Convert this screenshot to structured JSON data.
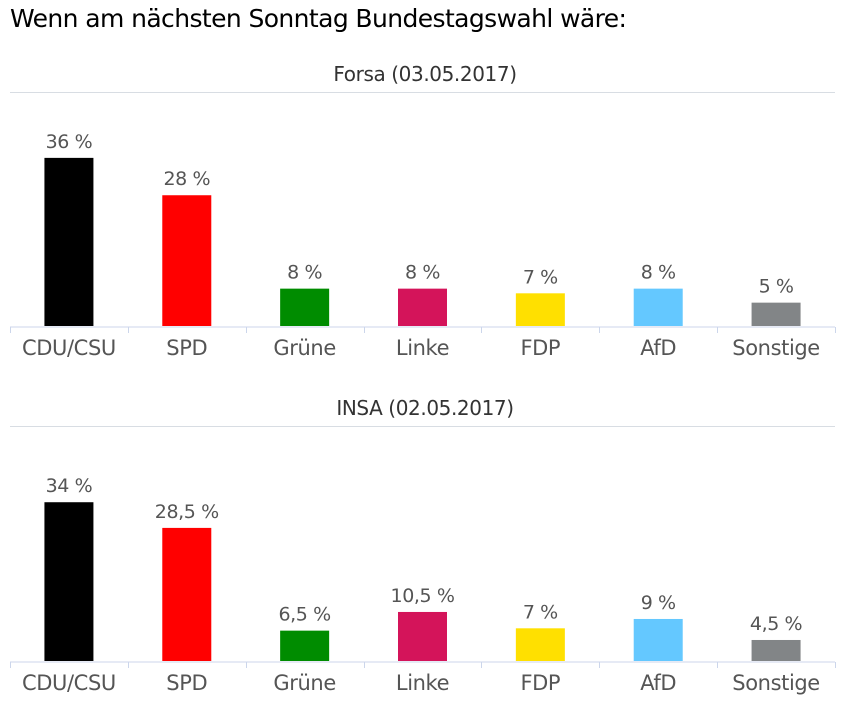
{
  "page": {
    "title": "Wenn am nächsten Sonntag Bundestagswahl wäre:"
  },
  "chart_data": [
    {
      "type": "bar",
      "title": "Forsa (03.05.2017)",
      "categories": [
        "CDU/CSU",
        "SPD",
        "Grüne",
        "Linke",
        "FDP",
        "AfD",
        "Sonstige"
      ],
      "values": [
        36,
        28,
        8,
        8,
        7,
        8,
        5
      ],
      "value_labels": [
        "36 %",
        "28 %",
        "8 %",
        "8 %",
        "7 %",
        "8 %",
        "5 %"
      ],
      "colors": [
        "#000000",
        "#ff0000",
        "#008c00",
        "#d4145a",
        "#ffe000",
        "#64c8ff",
        "#828587"
      ],
      "xlabel": "",
      "ylabel": "",
      "ylim": [
        0,
        36
      ],
      "grid": false,
      "legend": "none"
    },
    {
      "type": "bar",
      "title": "INSA (02.05.2017)",
      "categories": [
        "CDU/CSU",
        "SPD",
        "Grüne",
        "Linke",
        "FDP",
        "AfD",
        "Sonstige"
      ],
      "values": [
        34,
        28.5,
        6.5,
        10.5,
        7,
        9,
        4.5
      ],
      "value_labels": [
        "34 %",
        "28,5 %",
        "6,5 %",
        "10,5 %",
        "7 %",
        "9 %",
        "4,5 %"
      ],
      "colors": [
        "#000000",
        "#ff0000",
        "#008c00",
        "#d4145a",
        "#ffe000",
        "#64c8ff",
        "#828587"
      ],
      "xlabel": "",
      "ylabel": "",
      "ylim": [
        0,
        36
      ],
      "grid": false,
      "legend": "none"
    }
  ]
}
